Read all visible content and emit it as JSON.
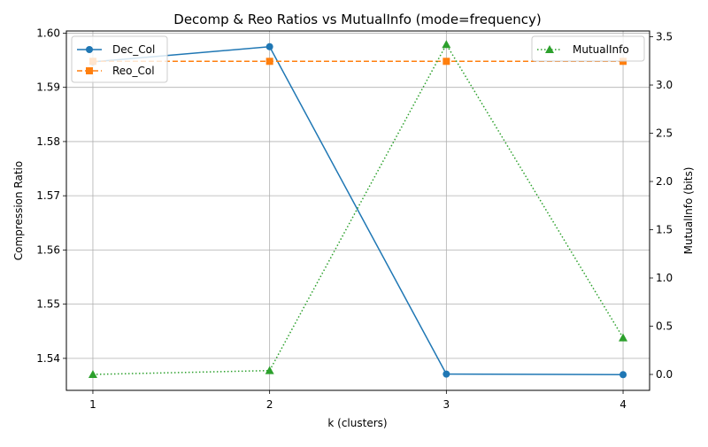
{
  "chart_data": {
    "type": "line",
    "title": "Decomp & Reo Ratios vs MutualInfo (mode=frequency)",
    "xlabel": "k (clusters)",
    "ylabel_left": "Compression Ratio",
    "ylabel_right": "MutualInfo (bits)",
    "x": [
      1,
      2,
      3,
      4
    ],
    "x_ticks": [
      "1",
      "2",
      "3",
      "4"
    ],
    "ylim_left": [
      1.5341,
      1.6004
    ],
    "ylim_right": [
      -0.165,
      3.56
    ],
    "yticks_left": [
      "1.54",
      "1.55",
      "1.56",
      "1.57",
      "1.58",
      "1.59",
      "1.60"
    ],
    "yticks_right": [
      "0.0",
      "0.5",
      "1.0",
      "1.5",
      "2.0",
      "2.5",
      "3.0",
      "3.5"
    ],
    "grid": true,
    "series": [
      {
        "name": "Dec_Col",
        "axis": "left",
        "values": [
          1.5947,
          1.5975,
          1.5371,
          1.537
        ],
        "color": "#1f77b4",
        "marker": "circle",
        "linestyle": "solid"
      },
      {
        "name": "Reo_Col",
        "axis": "left",
        "values": [
          1.5948,
          1.5948,
          1.5948,
          1.5948
        ],
        "color": "#ff7f0e",
        "marker": "square",
        "linestyle": "dashed"
      },
      {
        "name": "MutualInfo",
        "axis": "right",
        "values": [
          0.0,
          0.04,
          3.42,
          0.38
        ],
        "color": "#2ca02c",
        "marker": "triangle",
        "linestyle": "dotted"
      }
    ],
    "legend_left_placement": "upper-left",
    "legend_right_placement": "upper-right"
  }
}
